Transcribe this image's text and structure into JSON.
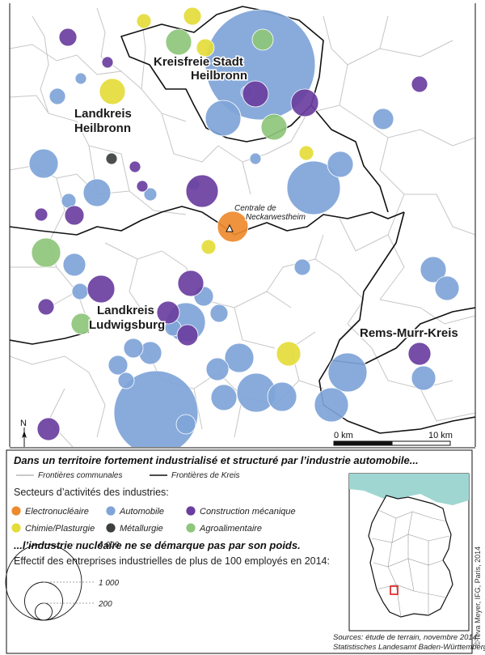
{
  "colors": {
    "electronucleaire": "#ee8a2e",
    "automobile": "#7fa4d8",
    "construction": "#6a3ea0",
    "chimie": "#e4dc3a",
    "metallurgie": "#3c4040",
    "agroalimentaire": "#8ec67a",
    "sea": "#9fd6d2",
    "commune_border": "#c6c6c6",
    "kreis_border": "#111111"
  },
  "map": {
    "kreis_labels": {
      "heilbronn_stadt_1": "Kreisfreie Stadt",
      "heilbronn_stadt_2": "Heilbronn",
      "heilbronn_land_1": "Landkreis",
      "heilbronn_land_2": "Heilbronn",
      "ludwigsburg_1": "Landkreis",
      "ludwigsburg_2": "Ludwigsburg",
      "rems_murr": "Rems-Murr-Kreis"
    },
    "plant_label_1": "Centrale de",
    "plant_label_2": "Neckarwestheim",
    "north_label": "N",
    "scale": {
      "start": "0 km",
      "end": "10 km"
    }
  },
  "legend": {
    "title": "Dans un territoire fortement industrialisé et structuré par l’industrie automobile...",
    "border_communal": "Frontières communales",
    "border_kreis": "Frontières de Kreis",
    "sectors_heading": "Secteurs d’activités des industries:",
    "sectors": [
      {
        "key": "electronucleaire",
        "label": "Electronucléaire"
      },
      {
        "key": "automobile",
        "label": "Automobile"
      },
      {
        "key": "construction",
        "label": "Construction mécanique"
      },
      {
        "key": "chimie",
        "label": "Chimie/Plasturgie"
      },
      {
        "key": "metallurgie",
        "label": "Métallurgie"
      },
      {
        "key": "agroalimentaire",
        "label": "Agroalimentaire"
      }
    ],
    "subtitle2": "...l’industrie nucléaire ne se démarque pas par son poids.",
    "size_heading": "Effectif des entreprises industrielles de plus de 100 employés en 2014:",
    "sizes": [
      {
        "value": 4000,
        "label": "4 000"
      },
      {
        "value": 1000,
        "label": "1 000"
      },
      {
        "value": 200,
        "label": "200"
      }
    ],
    "source_1": "Sources: étude de terrain, novembre 2014;",
    "source_2": "Statistisches Landesamt Baden-Württemberg",
    "credit": "©Teva Meyer, IFG, Paris, 2014"
  }
}
